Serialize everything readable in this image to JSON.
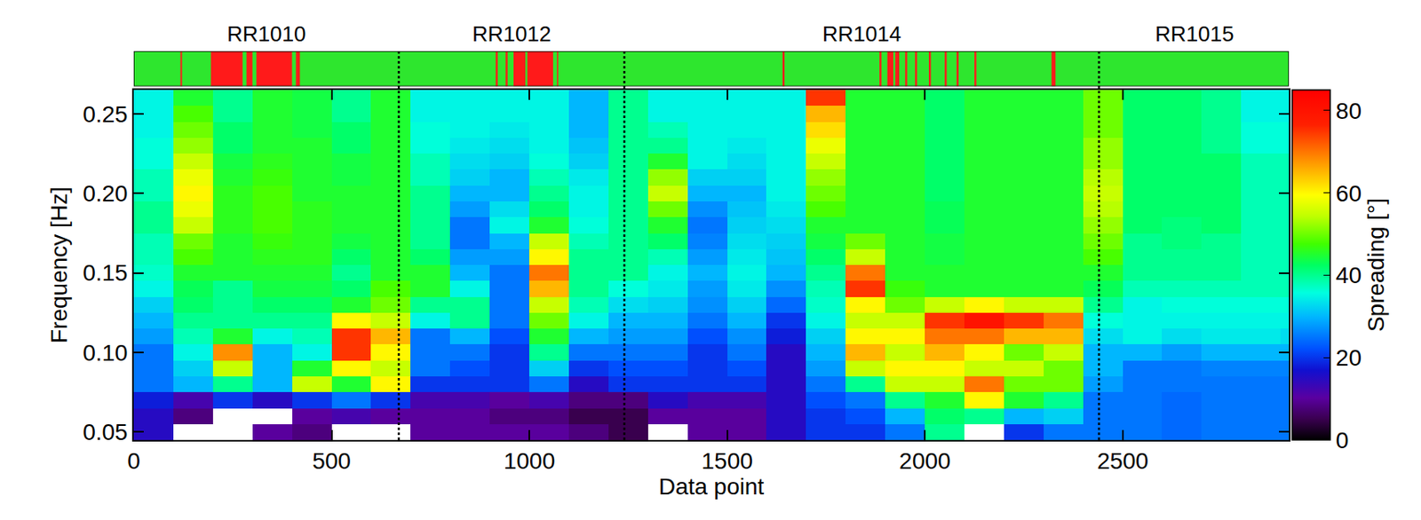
{
  "chart_data": {
    "type": "heatmap",
    "xlabel": "Data point",
    "ylabel": "Frequency [Hz]",
    "xlim": [
      0,
      2920
    ],
    "ylim": [
      0.045,
      0.265
    ],
    "xticks": [
      0,
      500,
      1000,
      1500,
      2000,
      2500
    ],
    "yticks": [
      {
        "value": 0.05,
        "label": "0.05"
      },
      {
        "value": 0.1,
        "label": "0.10"
      },
      {
        "value": 0.15,
        "label": "0.15"
      },
      {
        "value": 0.2,
        "label": "0.20"
      },
      {
        "value": 0.25,
        "label": "0.25"
      }
    ],
    "colorbar": {
      "title": "Spreading [°]",
      "zlim": [
        0,
        85
      ],
      "ticks": [
        0,
        20,
        40,
        60,
        80
      ]
    },
    "x": [
      50,
      150,
      250,
      350,
      450,
      550,
      650,
      750,
      850,
      950,
      1050,
      1150,
      1250,
      1350,
      1450,
      1550,
      1650,
      1750,
      1850,
      1950,
      2050,
      2150,
      2250,
      2350,
      2450,
      2550,
      2650,
      2750,
      2850,
      2950
    ],
    "y": [
      0.05,
      0.06,
      0.07,
      0.08,
      0.09,
      0.1,
      0.11,
      0.12,
      0.13,
      0.14,
      0.15,
      0.16,
      0.17,
      0.18,
      0.19,
      0.2,
      0.21,
      0.22,
      0.23,
      0.24,
      0.25,
      0.26
    ],
    "z_by_x": [
      [
        15,
        15,
        18,
        25,
        25,
        25,
        28,
        30,
        32,
        35,
        37,
        38,
        38,
        40,
        40,
        38,
        38,
        36,
        36,
        35,
        35,
        35
      ],
      [
        null,
        8,
        12,
        30,
        32,
        35,
        38,
        40,
        42,
        43,
        45,
        48,
        50,
        55,
        58,
        60,
        58,
        55,
        52,
        50,
        48,
        45
      ],
      [
        null,
        null,
        20,
        40,
        55,
        68,
        45,
        40,
        40,
        40,
        45,
        45,
        45,
        46,
        46,
        46,
        45,
        44,
        42,
        42,
        40,
        40
      ],
      [
        10,
        null,
        15,
        30,
        30,
        30,
        35,
        40,
        42,
        44,
        45,
        46,
        47,
        48,
        48,
        48,
        47,
        46,
        45,
        45,
        45,
        45
      ],
      [
        8,
        10,
        20,
        55,
        45,
        35,
        38,
        40,
        42,
        44,
        45,
        46,
        46,
        46,
        46,
        45,
        45,
        45,
        45,
        44,
        44,
        44
      ],
      [
        null,
        12,
        25,
        45,
        60,
        75,
        75,
        60,
        45,
        42,
        40,
        42,
        44,
        45,
        45,
        45,
        44,
        44,
        42,
        42,
        40,
        40
      ],
      [
        null,
        10,
        20,
        60,
        55,
        60,
        65,
        55,
        50,
        48,
        45,
        45,
        45,
        45,
        45,
        45,
        45,
        45,
        45,
        45,
        45,
        45
      ],
      [
        10,
        10,
        12,
        20,
        25,
        25,
        25,
        35,
        40,
        45,
        45,
        42,
        40,
        40,
        40,
        40,
        38,
        38,
        36,
        36,
        35,
        35
      ],
      [
        10,
        10,
        12,
        20,
        22,
        25,
        30,
        40,
        40,
        35,
        30,
        28,
        25,
        25,
        28,
        30,
        32,
        33,
        34,
        35,
        35,
        35
      ],
      [
        10,
        8,
        10,
        20,
        20,
        20,
        22,
        25,
        25,
        25,
        25,
        28,
        30,
        35,
        33,
        30,
        30,
        32,
        33,
        34,
        35,
        35
      ],
      [
        10,
        8,
        12,
        25,
        32,
        40,
        45,
        50,
        55,
        65,
        70,
        60,
        55,
        45,
        42,
        40,
        38,
        36,
        35,
        35,
        35,
        35
      ],
      [
        8,
        5,
        8,
        15,
        20,
        25,
        30,
        35,
        38,
        40,
        40,
        40,
        38,
        36,
        35,
        35,
        34,
        32,
        31,
        30,
        30,
        30
      ],
      [
        5,
        5,
        8,
        20,
        22,
        25,
        28,
        30,
        33,
        36,
        40,
        40,
        40,
        40,
        40,
        40,
        40,
        40,
        40,
        40,
        40,
        40
      ],
      [
        null,
        10,
        15,
        20,
        22,
        25,
        28,
        30,
        32,
        34,
        35,
        38,
        42,
        45,
        50,
        55,
        52,
        45,
        40,
        38,
        35,
        35
      ],
      [
        10,
        10,
        12,
        20,
        20,
        20,
        22,
        25,
        27,
        28,
        30,
        28,
        26,
        25,
        27,
        30,
        32,
        35,
        35,
        35,
        35,
        35
      ],
      [
        10,
        10,
        12,
        20,
        22,
        25,
        27,
        30,
        32,
        34,
        35,
        34,
        33,
        32,
        31,
        30,
        32,
        33,
        34,
        35,
        35,
        35
      ],
      [
        15,
        15,
        15,
        15,
        15,
        15,
        18,
        20,
        24,
        27,
        30,
        31,
        32,
        33,
        34,
        35,
        35,
        35,
        35,
        35,
        35,
        35
      ],
      [
        20,
        20,
        22,
        25,
        28,
        30,
        32,
        35,
        37,
        38,
        40,
        42,
        44,
        45,
        48,
        50,
        52,
        55,
        58,
        62,
        65,
        75
      ],
      [
        20,
        22,
        25,
        40,
        55,
        65,
        60,
        55,
        60,
        75,
        70,
        55,
        50,
        45,
        45,
        45,
        45,
        45,
        45,
        45,
        45,
        45
      ],
      [
        25,
        30,
        40,
        55,
        60,
        55,
        60,
        55,
        50,
        47,
        45,
        45,
        45,
        45,
        45,
        45,
        45,
        45,
        45,
        45,
        45,
        45
      ],
      [
        40,
        42,
        45,
        55,
        60,
        65,
        70,
        75,
        55,
        45,
        45,
        44,
        44,
        43,
        43,
        42,
        42,
        42,
        42,
        42,
        42,
        42
      ],
      [
        null,
        40,
        60,
        70,
        55,
        60,
        70,
        80,
        60,
        45,
        45,
        45,
        45,
        45,
        45,
        45,
        45,
        45,
        45,
        45,
        45,
        45
      ],
      [
        20,
        30,
        45,
        50,
        55,
        50,
        65,
        75,
        55,
        45,
        45,
        45,
        45,
        45,
        45,
        45,
        45,
        45,
        45,
        45,
        45,
        45
      ],
      [
        25,
        32,
        40,
        50,
        50,
        55,
        65,
        70,
        55,
        45,
        45,
        45,
        45,
        45,
        45,
        45,
        45,
        45,
        45,
        45,
        45,
        45
      ],
      [
        25,
        25,
        25,
        28,
        30,
        30,
        33,
        36,
        40,
        43,
        45,
        48,
        50,
        52,
        54,
        55,
        54,
        52,
        52,
        50,
        50,
        50
      ],
      [
        25,
        25,
        25,
        25,
        25,
        30,
        35,
        35,
        35,
        38,
        40,
        40,
        40,
        42,
        42,
        42,
        42,
        42,
        42,
        42,
        42,
        42
      ],
      [
        24,
        24,
        24,
        25,
        25,
        28,
        33,
        35,
        36,
        38,
        40,
        40,
        41,
        41,
        42,
        42,
        42,
        42,
        42,
        42,
        42,
        42
      ],
      [
        25,
        25,
        25,
        25,
        26,
        30,
        34,
        35,
        36,
        38,
        40,
        40,
        40,
        42,
        42,
        42,
        42,
        42,
        40,
        40,
        40,
        40
      ],
      [
        25,
        25,
        25,
        25,
        26,
        30,
        34,
        35,
        36,
        38,
        38,
        38,
        38,
        38,
        38,
        38,
        38,
        38,
        36,
        36,
        35,
        35
      ],
      [
        25,
        25,
        25,
        25,
        26,
        30,
        33,
        35,
        36,
        38,
        38,
        38,
        38,
        38,
        38,
        38,
        38,
        38,
        36,
        36,
        35,
        35
      ]
    ],
    "segments": [
      {
        "label": "RR1010",
        "start": 0,
        "end": 670
      },
      {
        "label": "RR1012",
        "start": 670,
        "end": 1240
      },
      {
        "label": "RR1014",
        "start": 1240,
        "end": 2440
      },
      {
        "label": "RR1015",
        "start": 2440,
        "end": 2920
      }
    ],
    "strip": {
      "colors": [
        "#2ee62e",
        "#ff1a1a"
      ],
      "red_intervals": [
        [
          118,
          122
        ],
        [
          195,
          275
        ],
        [
          285,
          300
        ],
        [
          310,
          400
        ],
        [
          410,
          420
        ],
        [
          915,
          920
        ],
        [
          940,
          945
        ],
        [
          960,
          990
        ],
        [
          995,
          1060
        ],
        [
          1070,
          1073
        ],
        [
          1640,
          1645
        ],
        [
          1885,
          1890
        ],
        [
          1905,
          1920
        ],
        [
          1925,
          1935
        ],
        [
          1950,
          1955
        ],
        [
          1975,
          1980
        ],
        [
          2010,
          2015
        ],
        [
          2050,
          2055
        ],
        [
          2080,
          2085
        ],
        [
          2125,
          2130
        ],
        [
          2320,
          2330
        ]
      ]
    }
  }
}
